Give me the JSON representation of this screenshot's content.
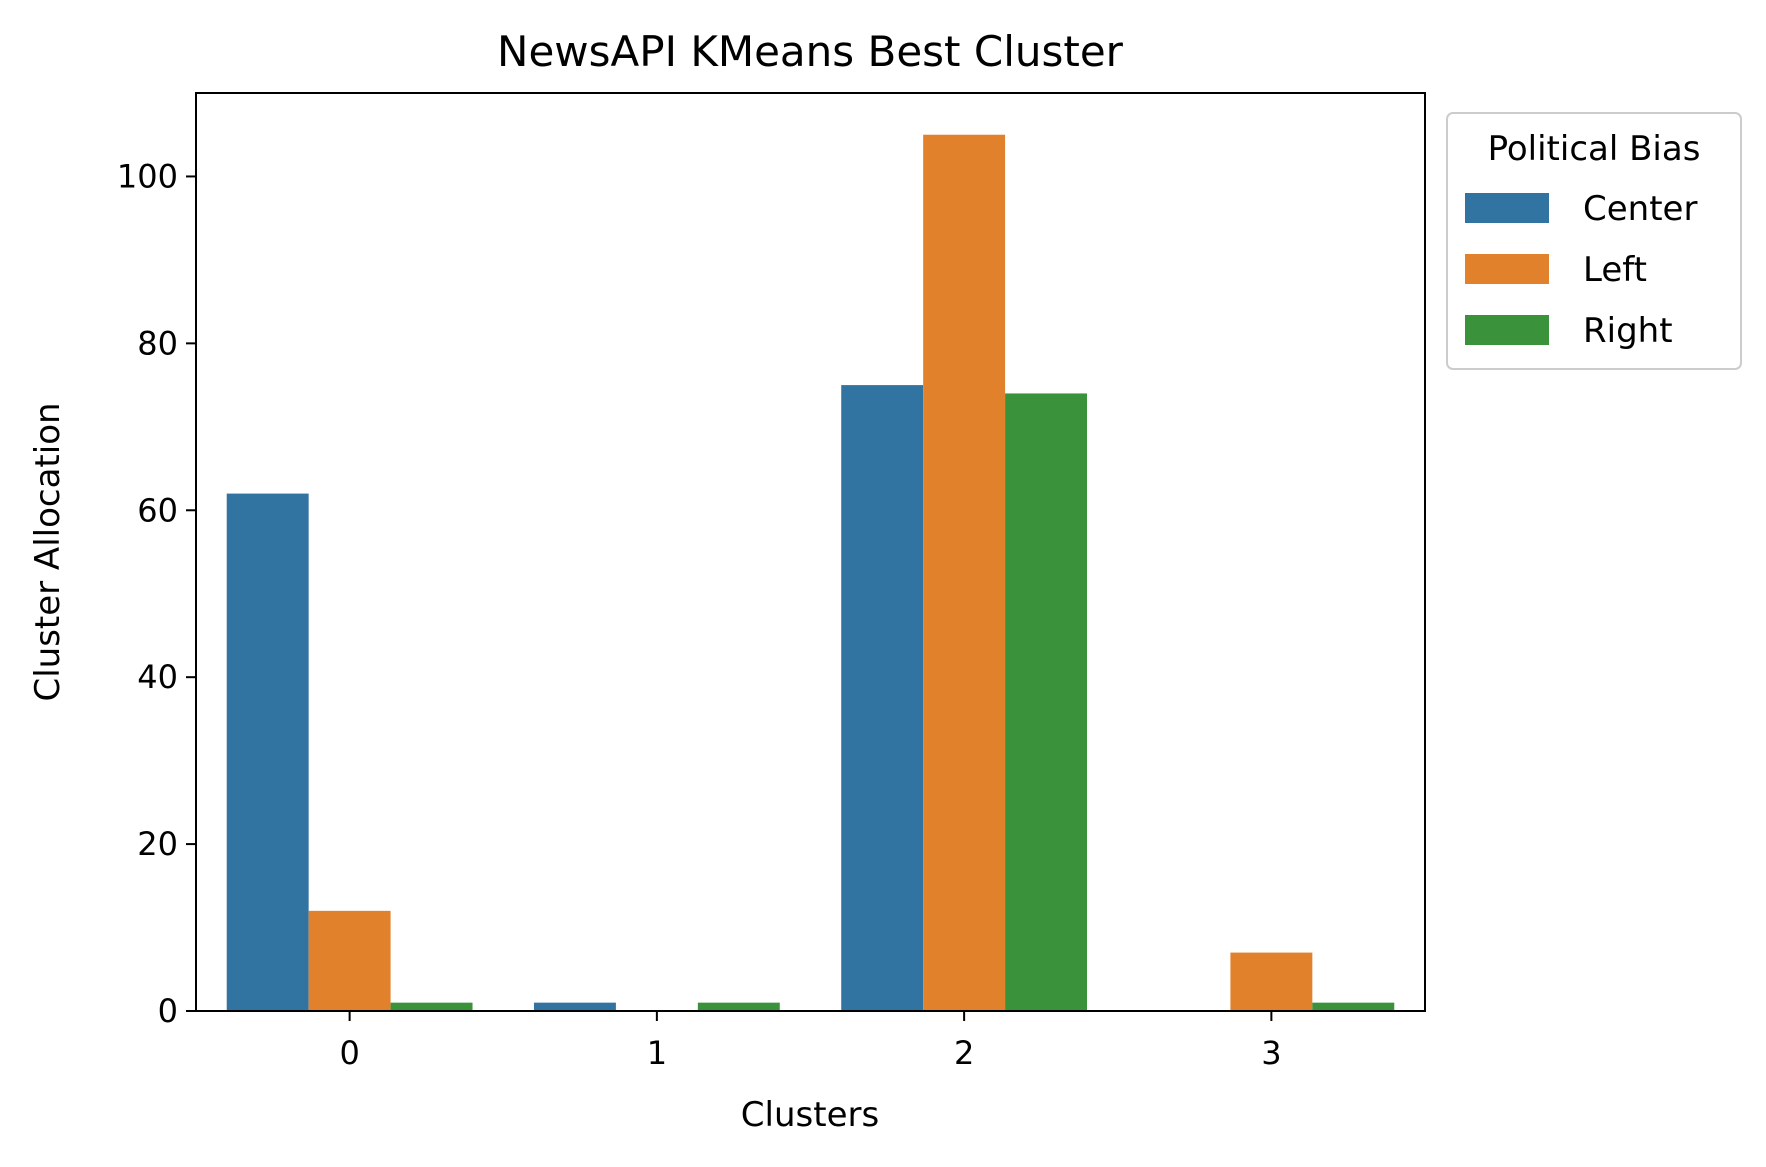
{
  "chart_data": {
    "type": "bar",
    "title": "NewsAPI KMeans Best Cluster",
    "xlabel": "Clusters",
    "ylabel": "Cluster Allocation",
    "categories": [
      "0",
      "1",
      "2",
      "3"
    ],
    "series": [
      {
        "name": "Center",
        "color": "#3274a1",
        "values": [
          62,
          1,
          75,
          0
        ]
      },
      {
        "name": "Left",
        "color": "#e1812c",
        "values": [
          12,
          0,
          105,
          7
        ]
      },
      {
        "name": "Right",
        "color": "#3a923a",
        "values": [
          1,
          1,
          74,
          1
        ]
      }
    ],
    "ylim": [
      0,
      110
    ],
    "yticks": [
      0,
      20,
      40,
      60,
      80,
      100
    ],
    "grid": false,
    "legend": {
      "title": "Political Bias",
      "placement": "outside-top-right"
    }
  }
}
